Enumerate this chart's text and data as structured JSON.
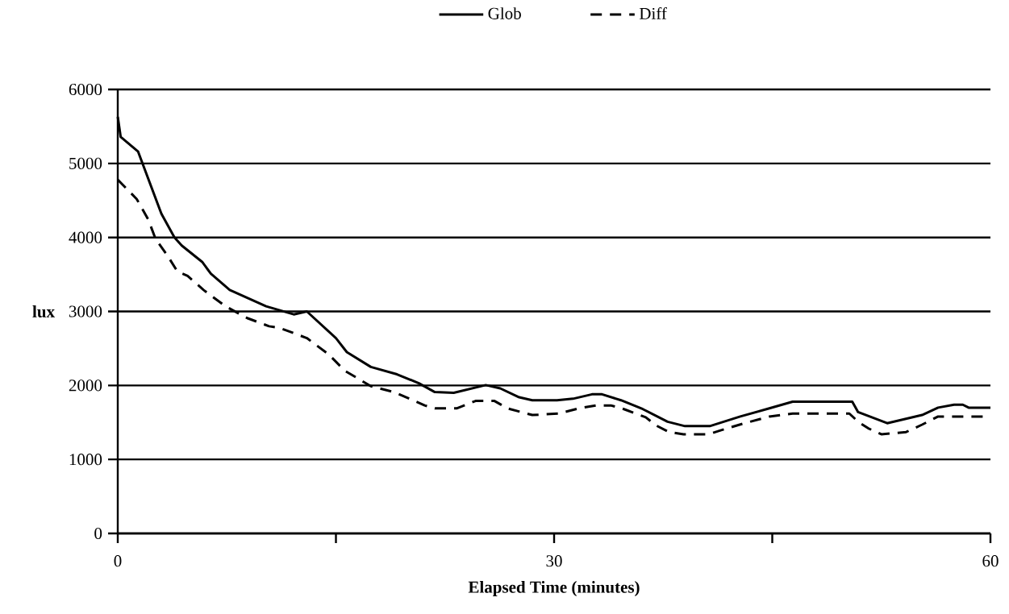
{
  "chart_data": {
    "type": "line",
    "xlabel": "Elapsed Time (minutes)",
    "ylabel": "lux",
    "xlim": [
      0,
      60
    ],
    "xticks": [
      0,
      {
        "value": 15,
        "label": null
      },
      30,
      {
        "value": 45,
        "label": null
      },
      60
    ],
    "ylim": [
      0,
      6000
    ],
    "yticks": [
      0,
      1000,
      2000,
      3000,
      4000,
      5000,
      6000
    ],
    "grid": "y",
    "legend": "top",
    "marker": "none",
    "series": [
      {
        "name": "Glob",
        "color": "#000000",
        "line_style": "solid",
        "x": [
          0,
          0.2,
          1.4,
          1.7,
          3.0,
          3.9,
          4.4,
          5.8,
          6.4,
          7.7,
          10.2,
          12.1,
          13.0,
          15.0,
          15.75,
          17.4,
          19.2,
          20.7,
          21.8,
          23.1,
          25.3,
          26.3,
          27.6,
          28.5,
          30.2,
          31.3,
          32.6,
          33.3,
          34.6,
          36.1,
          37.8,
          39.0,
          40.7,
          42.8,
          44.8,
          46.4,
          50.5,
          50.9,
          52.9,
          55.3,
          56.4,
          57.5,
          58.1,
          58.5,
          60
        ],
        "values": [
          5630,
          5360,
          5160,
          5000,
          4320,
          4000,
          3890,
          3670,
          3510,
          3290,
          3070,
          2960,
          3000,
          2640,
          2450,
          2250,
          2150,
          2030,
          1910,
          1900,
          2005,
          1960,
          1840,
          1800,
          1800,
          1820,
          1880,
          1880,
          1800,
          1680,
          1510,
          1450,
          1450,
          1580,
          1690,
          1780,
          1780,
          1640,
          1490,
          1600,
          1700,
          1740,
          1740,
          1700,
          1700
        ]
      },
      {
        "name": "Diff",
        "color": "#000000",
        "line_style": "dashed",
        "x": [
          0,
          1.3,
          2.1,
          2.6,
          3.4,
          4.1,
          4.8,
          5.9,
          7.4,
          8.9,
          10.4,
          11.1,
          13.0,
          14.5,
          15.6,
          17.4,
          19.0,
          21.1,
          21.8,
          23.3,
          24.6,
          25.9,
          26.8,
          28.5,
          30.3,
          31.7,
          32.9,
          33.9,
          34.8,
          36.3,
          37.0,
          37.9,
          38.9,
          40.6,
          41.4,
          43.1,
          44.8,
          46.4,
          50.3,
          50.9,
          51.6,
          52.5,
          54.2,
          55.3,
          56.4,
          60
        ],
        "values": [
          4780,
          4520,
          4240,
          3980,
          3760,
          3540,
          3480,
          3290,
          3070,
          2910,
          2800,
          2780,
          2640,
          2420,
          2200,
          1990,
          1910,
          1730,
          1690,
          1690,
          1790,
          1790,
          1690,
          1600,
          1620,
          1690,
          1730,
          1730,
          1680,
          1570,
          1460,
          1370,
          1340,
          1340,
          1390,
          1490,
          1580,
          1620,
          1620,
          1510,
          1420,
          1340,
          1370,
          1470,
          1580,
          1580
        ]
      }
    ]
  }
}
